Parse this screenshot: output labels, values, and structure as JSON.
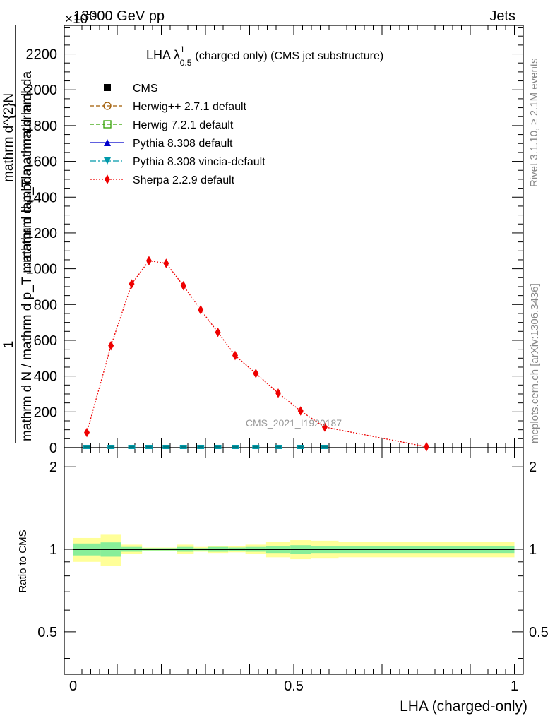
{
  "header": {
    "left": "13000 GeV pp",
    "right": "Jets",
    "exponent": "×10",
    "exponent_power": "-3"
  },
  "side": {
    "rivet": "Rivet 3.1.10, ≥ 2.1M events",
    "mcplots": "mcplots.cern.ch [arXiv:1306.3436]"
  },
  "watermark": "CMS_2021_I1920187",
  "chart_data": [
    {
      "type": "line",
      "title_main": "LHA λ",
      "title_sup": "1",
      "title_sub": "0.5",
      "title_rest": "(charged only) (CMS jet substructure)",
      "ylabel_numerator": "1",
      "ylabel_denominator": "mathrm d N / mathrm d p_T mathrm d lambda",
      "ylabel_prefix": "mathrm d",
      "ylabel_top": "mathrm d^{2}N",
      "ylabel_bottom": "mathrm d p_T mathrm d lambda",
      "ylim": [
        0,
        2360
      ],
      "y_ticks": [
        0,
        200,
        400,
        600,
        800,
        1000,
        1200,
        1400,
        1600,
        1800,
        2000,
        2200
      ],
      "xlim": [
        -0.02,
        1.02
      ],
      "legend_position": "top-left",
      "series": [
        {
          "name": "CMS",
          "color": "#000000",
          "marker": "square",
          "x": [
            0.03125,
            0.0859,
            0.1328,
            0.1719,
            0.2109,
            0.25,
            0.2891,
            0.3281,
            0.3672,
            0.4141,
            0.4648,
            0.5156,
            0.5703
          ],
          "y": [
            4,
            4,
            4,
            4,
            4,
            4,
            4,
            4,
            4,
            4,
            4,
            4,
            4
          ]
        },
        {
          "name": "Herwig++ 2.7.1 default",
          "color": "#a05a00",
          "marker": "circle-open",
          "dash": "5,3"
        },
        {
          "name": "Herwig 7.2.1 default",
          "color": "#33a000",
          "marker": "square-open",
          "dash": "5,3"
        },
        {
          "name": "Pythia 8.308 default",
          "color": "#0000cc",
          "marker": "triangle-up",
          "dash": ""
        },
        {
          "name": "Pythia 8.308 vincia-default",
          "color": "#0099aa",
          "marker": "triangle-down",
          "dash": "8,3,2,3"
        },
        {
          "name": "Sherpa 2.2.9 default",
          "color": "#ee0000",
          "marker": "diamond",
          "dash": "2,2",
          "x": [
            0.03125,
            0.0859,
            0.1328,
            0.1719,
            0.2109,
            0.25,
            0.2891,
            0.3281,
            0.3672,
            0.4141,
            0.4648,
            0.5156,
            0.5703,
            0.8008
          ],
          "y": [
            85,
            570,
            915,
            1045,
            1030,
            905,
            770,
            645,
            515,
            415,
            305,
            205,
            115,
            5
          ]
        }
      ]
    },
    {
      "type": "area",
      "ylabel": "Ratio to CMS",
      "xlabel": "LHA (charged-only)",
      "ylim": [
        0.35,
        2.35
      ],
      "y_ticks": [
        0.5,
        1,
        2
      ],
      "y_tick_labels": [
        "0.5",
        "1",
        "2"
      ],
      "x_ticks": [
        0,
        0.5,
        1
      ],
      "x_tick_labels": [
        "0",
        "0.5",
        "1"
      ],
      "reference_line": 1,
      "bins": [
        {
          "lo": 0.0,
          "hi": 0.0625,
          "y1": 0.05,
          "y2": 0.1
        },
        {
          "lo": 0.0625,
          "hi": 0.1094,
          "y1": 0.06,
          "y2": 0.13
        },
        {
          "lo": 0.1094,
          "hi": 0.1563,
          "y1": 0.02,
          "y2": 0.04
        },
        {
          "lo": 0.1563,
          "hi": 0.2344,
          "y1": 0.01,
          "y2": 0.015
        },
        {
          "lo": 0.2344,
          "hi": 0.2734,
          "y1": 0.02,
          "y2": 0.04
        },
        {
          "lo": 0.2734,
          "hi": 0.3047,
          "y1": 0.01,
          "y2": 0.02
        },
        {
          "lo": 0.3047,
          "hi": 0.3516,
          "y1": 0.02,
          "y2": 0.03
        },
        {
          "lo": 0.3516,
          "hi": 0.3906,
          "y1": 0.015,
          "y2": 0.025
        },
        {
          "lo": 0.3906,
          "hi": 0.4375,
          "y1": 0.02,
          "y2": 0.04
        },
        {
          "lo": 0.4375,
          "hi": 0.4922,
          "y1": 0.03,
          "y2": 0.065
        },
        {
          "lo": 0.4922,
          "hi": 0.5391,
          "y1": 0.035,
          "y2": 0.08
        },
        {
          "lo": 0.5391,
          "hi": 0.6016,
          "y1": 0.03,
          "y2": 0.075
        },
        {
          "lo": 0.6016,
          "hi": 1.0,
          "y1": 0.03,
          "y2": 0.065
        }
      ],
      "colors": {
        "band1": "#88ee99",
        "band2": "#ffff99"
      }
    }
  ]
}
